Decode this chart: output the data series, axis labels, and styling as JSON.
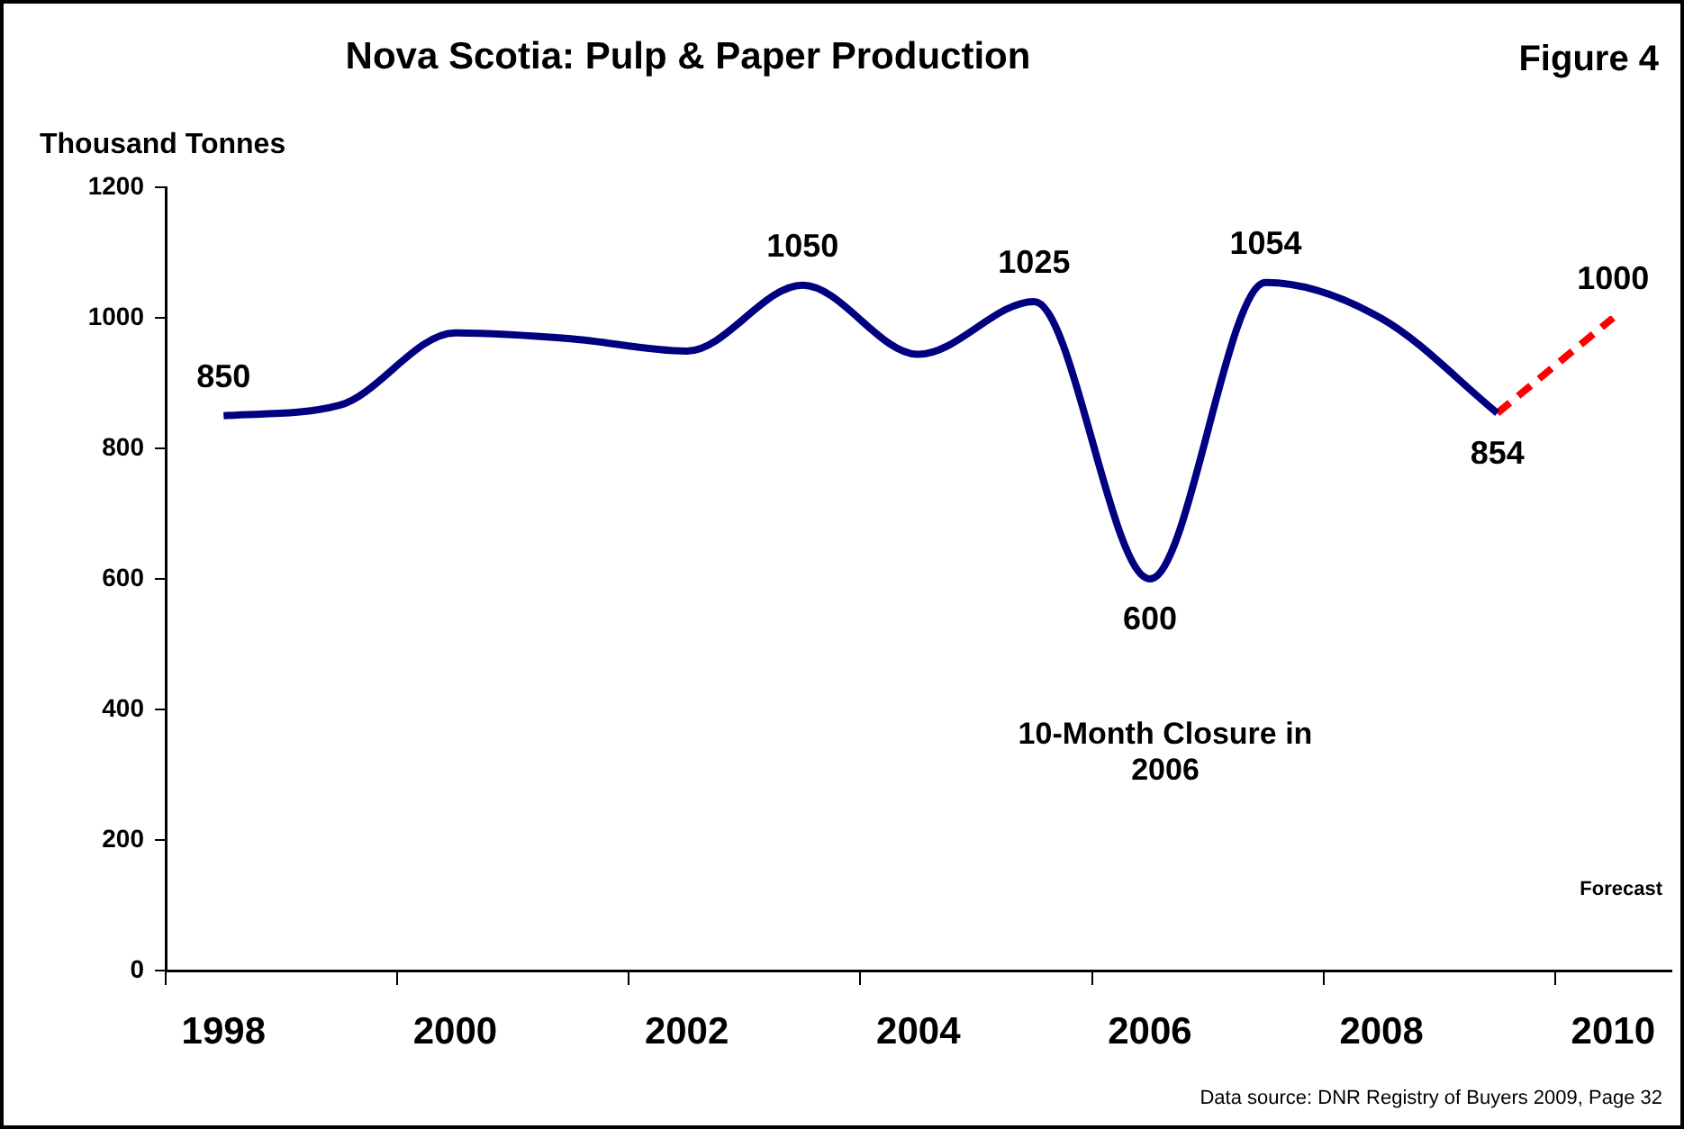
{
  "chart_data": {
    "type": "line",
    "title": "Nova Scotia: Pulp & Paper Production",
    "ylabel": "Thousand Tonnes",
    "categories": [
      "1998",
      null,
      "2000",
      null,
      "2002",
      null,
      "2004",
      null,
      "2006",
      null,
      "2008",
      null,
      "2010"
    ],
    "series": [
      {
        "color": "#000080",
        "line_style": "solid",
        "values": [
          850,
          866,
          977,
          968,
          949,
          1050,
          944,
          1025,
          600,
          1054,
          999,
          854,
          null
        ],
        "value_labels": [
          "850",
          null,
          null,
          null,
          null,
          "1050",
          null,
          "1025",
          "600",
          "1054",
          null,
          "854",
          null
        ]
      },
      {
        "color": "#ff0000",
        "line_style": "dashed",
        "values": [
          null,
          null,
          null,
          null,
          null,
          null,
          null,
          null,
          null,
          null,
          null,
          854,
          1000
        ],
        "value_labels": [
          null,
          null,
          null,
          null,
          null,
          null,
          null,
          null,
          null,
          null,
          null,
          null,
          "1000"
        ]
      }
    ],
    "ylim": [
      0,
      1200
    ],
    "yticks": [
      0,
      200,
      400,
      600,
      800,
      1000,
      1200
    ],
    "grid": false,
    "legend": false,
    "marker": "none",
    "annotations": [
      "Figure 4",
      "10-Month Closure in 2006",
      "Forecast",
      "Data source: DNR Registry of Buyers 2009, Page 32"
    ]
  }
}
